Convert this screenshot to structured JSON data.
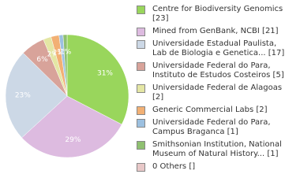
{
  "chart_data": {
    "type": "pie",
    "categories": [
      "Centre for Biodiversity Genomics [23]",
      "Mined from GenBank, NCBI [21]",
      "Universidade Estadual Paulista, Lab de Biologia e Genetica... [17]",
      "Universidade Federal do Para, Instituto de Estudos Costeiros [5]",
      "Universidade Federal de Alagoas [2]",
      "Generic Commercial Labs [2]",
      "Universidade Federal do Para, Campus Braganca [1]",
      "Smithsonian Institution, National Museum of Natural History... [1]",
      "0 Others []"
    ],
    "values": [
      31,
      29,
      23,
      6,
      2,
      2,
      1,
      1,
      null
    ],
    "value_labels": [
      "31%",
      "29%",
      "23%",
      "6%",
      "2%",
      "2%",
      "1%",
      "1%",
      null
    ],
    "colors": [
      "#99d65c",
      "#ddbbe0",
      "#ccd8e6",
      "#d8a39a",
      "#e4e6a4",
      "#f2b074",
      "#9cc0e0",
      "#8fc070",
      "#e8c8c8"
    ]
  }
}
